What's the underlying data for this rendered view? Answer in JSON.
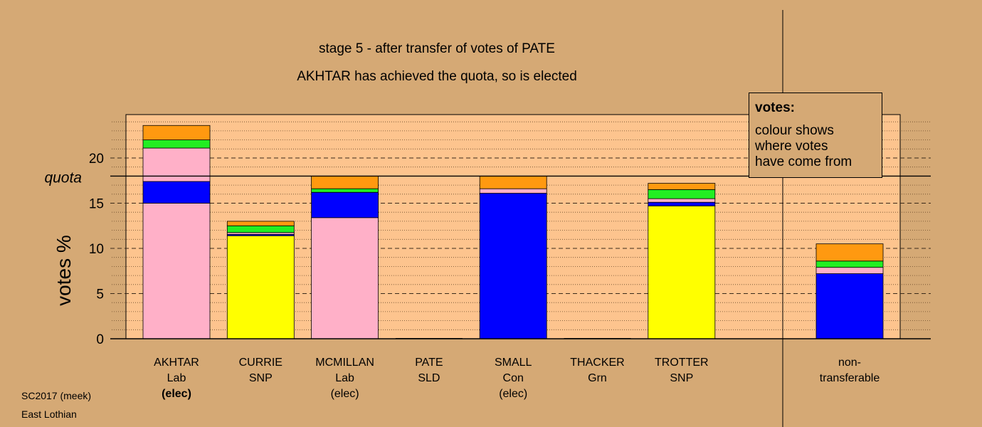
{
  "chart_data": {
    "type": "bar",
    "stacked": true,
    "title": "stage 5 - after transfer of votes of PATE",
    "subtitle": "AKHTAR has achieved the quota, so is elected",
    "ylabel": "votes %",
    "ylim": [
      0,
      25
    ],
    "yticks": [
      0,
      5,
      10,
      15,
      20
    ],
    "quota": 18,
    "quota_label": "quota",
    "grid": true,
    "colors": {
      "Lab": "#ffb0c8",
      "Con": "#0000ff",
      "SNP": "#ffff00",
      "Grn": "#22ee22",
      "SLD": "#ff9910"
    },
    "candidates": [
      {
        "name": "AKHTAR",
        "party": "Lab",
        "status": "(elec)",
        "status_bold": true,
        "segments": [
          {
            "party": "Lab",
            "value": 15.0
          },
          {
            "party": "Con",
            "value": 2.4
          },
          {
            "party": "Lab",
            "value": 3.7
          },
          {
            "party": "Grn",
            "value": 0.9
          },
          {
            "party": "SLD",
            "value": 1.6
          }
        ]
      },
      {
        "name": "CURRIE",
        "party": "SNP",
        "status": "",
        "segments": [
          {
            "party": "SNP",
            "value": 11.4
          },
          {
            "party": "Con",
            "value": 0.15
          },
          {
            "party": "Lab",
            "value": 0.2
          },
          {
            "party": "Grn",
            "value": 0.75
          },
          {
            "party": "SLD",
            "value": 0.5
          }
        ]
      },
      {
        "name": "MCMILLAN",
        "party": "Lab",
        "status": "(elec)",
        "segments": [
          {
            "party": "Lab",
            "value": 13.4
          },
          {
            "party": "Con",
            "value": 2.8
          },
          {
            "party": "Grn",
            "value": 0.4
          },
          {
            "party": "SLD",
            "value": 1.4
          }
        ]
      },
      {
        "name": "PATE",
        "party": "SLD",
        "status": "",
        "segments": []
      },
      {
        "name": "SMALL",
        "party": "Con",
        "status": "(elec)",
        "segments": [
          {
            "party": "Con",
            "value": 16.1
          },
          {
            "party": "Lab",
            "value": 0.5
          },
          {
            "party": "SLD",
            "value": 1.4
          }
        ]
      },
      {
        "name": "THACKER",
        "party": "Grn",
        "status": "",
        "segments": []
      },
      {
        "name": "TROTTER",
        "party": "SNP",
        "status": "",
        "segments": [
          {
            "party": "SNP",
            "value": 14.7
          },
          {
            "party": "Con",
            "value": 0.4
          },
          {
            "party": "Lab",
            "value": 0.4
          },
          {
            "party": "Grn",
            "value": 1.0
          },
          {
            "party": "SLD",
            "value": 0.7
          }
        ]
      },
      {
        "name": "non-",
        "party": "transferable",
        "status": "",
        "separated": true,
        "segments": [
          {
            "party": "Con",
            "value": 7.2
          },
          {
            "party": "Lab",
            "value": 0.7
          },
          {
            "party": "Grn",
            "value": 0.7
          },
          {
            "party": "SLD",
            "value": 1.9
          }
        ]
      }
    ],
    "legend": {
      "title": "votes:",
      "lines": [
        "colour shows",
        "where votes",
        "have come from"
      ]
    }
  },
  "footer": {
    "line1": "SC2017 (meek)",
    "line2": "East Lothian"
  }
}
